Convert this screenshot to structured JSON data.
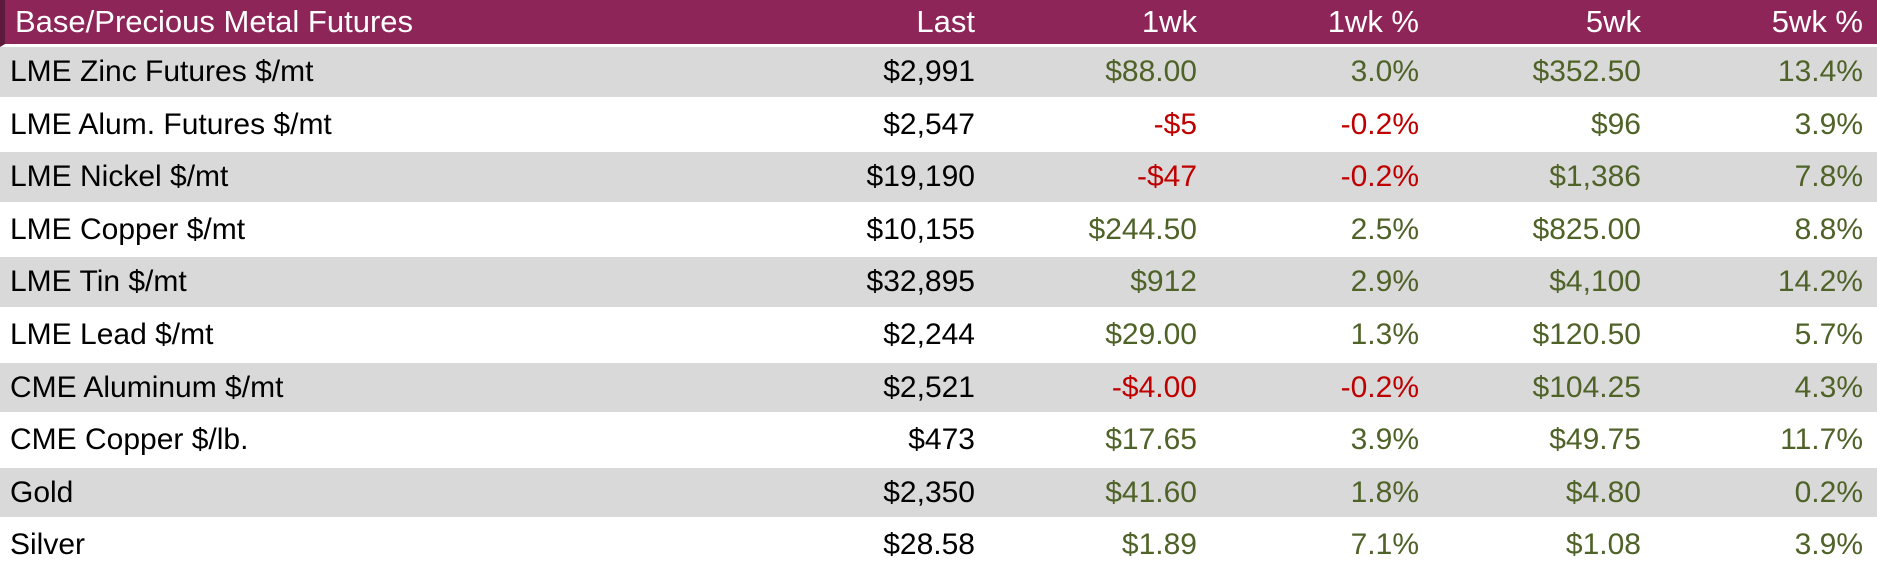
{
  "chart_data": {
    "type": "table",
    "title": "Base/Precious Metal Futures",
    "columns": [
      "Last",
      "1wk",
      "1wk %",
      "5wk",
      "5wk %"
    ],
    "rows": [
      {
        "label": "LME Zinc Futures $/mt",
        "values": [
          "$2,991",
          "$88.00",
          "3.0%",
          "$352.50",
          "13.4%"
        ],
        "signs": [
          "neutral",
          "pos",
          "pos",
          "pos",
          "pos"
        ]
      },
      {
        "label": "LME Alum. Futures $/mt",
        "values": [
          "$2,547",
          "-$5",
          "-0.2%",
          "$96",
          "3.9%"
        ],
        "signs": [
          "neutral",
          "neg",
          "neg",
          "pos",
          "pos"
        ]
      },
      {
        "label": "LME Nickel $/mt",
        "values": [
          "$19,190",
          "-$47",
          "-0.2%",
          "$1,386",
          "7.8%"
        ],
        "signs": [
          "neutral",
          "neg",
          "neg",
          "pos",
          "pos"
        ]
      },
      {
        "label": "LME Copper $/mt",
        "values": [
          "$10,155",
          "$244.50",
          "2.5%",
          "$825.00",
          "8.8%"
        ],
        "signs": [
          "neutral",
          "pos",
          "pos",
          "pos",
          "pos"
        ]
      },
      {
        "label": "LME Tin $/mt",
        "values": [
          "$32,895",
          "$912",
          "2.9%",
          "$4,100",
          "14.2%"
        ],
        "signs": [
          "neutral",
          "pos",
          "pos",
          "pos",
          "pos"
        ]
      },
      {
        "label": "LME Lead $/mt",
        "values": [
          "$2,244",
          "$29.00",
          "1.3%",
          "$120.50",
          "5.7%"
        ],
        "signs": [
          "neutral",
          "pos",
          "pos",
          "pos",
          "pos"
        ]
      },
      {
        "label": "CME Aluminum $/mt",
        "values": [
          "$2,521",
          "-$4.00",
          "-0.2%",
          "$104.25",
          "4.3%"
        ],
        "signs": [
          "neutral",
          "neg",
          "neg",
          "pos",
          "pos"
        ]
      },
      {
        "label": "CME Copper $/lb.",
        "values": [
          "$473",
          "$17.65",
          "3.9%",
          "$49.75",
          "11.7%"
        ],
        "signs": [
          "neutral",
          "pos",
          "pos",
          "pos",
          "pos"
        ]
      },
      {
        "label": "Gold",
        "values": [
          "$2,350",
          "$41.60",
          "1.8%",
          "$4.80",
          "0.2%"
        ],
        "signs": [
          "neutral",
          "pos",
          "pos",
          "pos",
          "pos"
        ]
      },
      {
        "label": "Silver",
        "values": [
          "$28.58",
          "$1.89",
          "7.1%",
          "$1.08",
          "3.9%"
        ],
        "signs": [
          "neutral",
          "pos",
          "pos",
          "pos",
          "pos"
        ]
      }
    ],
    "layout": {
      "row_striping": "alternating starting gray",
      "value_alignment": "right",
      "legend": "none",
      "grid": "white row separators"
    },
    "colors": {
      "header_bg": "#8E2558",
      "header_border": "#5E1A3C",
      "header_text": "#FFFFFF",
      "row_alt_bg": "#D9D9D9",
      "row_bg": "#FFFFFF",
      "value_neutral": "#000000",
      "value_positive": "#4F6228",
      "value_negative": "#C00000"
    }
  }
}
